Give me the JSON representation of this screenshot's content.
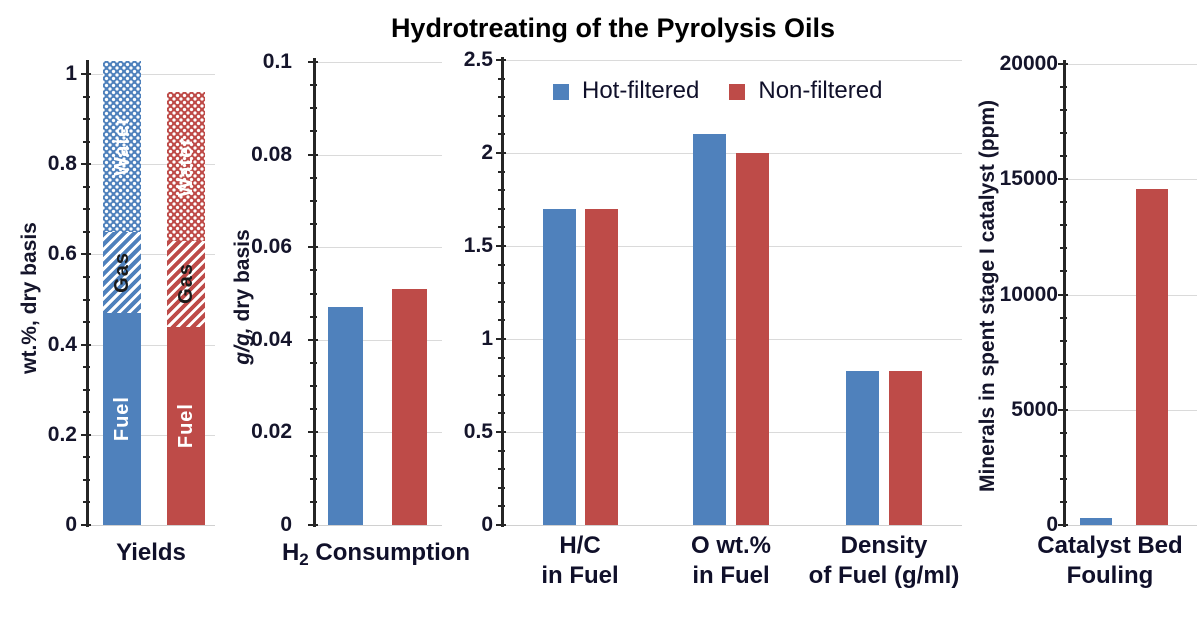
{
  "chart_data": {
    "type": "bar",
    "title": "Hydrotreating of the Pyrolysis Oils",
    "legend": {
      "position": "top-center of fuel-properties panel",
      "items": [
        {
          "label": "Hot-filtered",
          "color": "#4F81BC"
        },
        {
          "label": "Non-filtered",
          "color": "#BE4B48"
        }
      ]
    },
    "grid": "horizontal major gridlines on",
    "panels": [
      {
        "id": "yields",
        "type": "stacked",
        "xlabel_lines": [
          [
            {
              "text": "Yields"
            }
          ]
        ],
        "ylabel_parts": [
          {
            "text": "wt.%, dry basis"
          }
        ],
        "ylim": [
          0,
          1.03
        ],
        "yticks": [
          0,
          0.2,
          0.4,
          0.6,
          0.8,
          1
        ],
        "ytick_labels": [
          "0",
          "0.2",
          "0.4",
          "0.6",
          "0.8",
          "1"
        ],
        "minor_step": 0.05,
        "series": [
          {
            "name": "Hot-filtered",
            "color": "#4F81BC",
            "total": 1.03,
            "segments": [
              {
                "label": "Fuel",
                "value": 0.47,
                "pattern": "solid",
                "label_color": "#ffffff"
              },
              {
                "label": "Gas",
                "value": 0.18,
                "pattern": "diagonal",
                "label_color": "#1a1a1a"
              },
              {
                "label": "Water",
                "value": 0.38,
                "pattern": "dots",
                "label_color": "#ffffff"
              }
            ]
          },
          {
            "name": "Non-filtered",
            "color": "#BE4B48",
            "total": 0.96,
            "segments": [
              {
                "label": "Fuel",
                "value": 0.44,
                "pattern": "solid",
                "label_color": "#ffffff"
              },
              {
                "label": "Gas",
                "value": 0.19,
                "pattern": "diagonal",
                "label_color": "#1a1a1a"
              },
              {
                "label": "Water",
                "value": 0.33,
                "pattern": "dots",
                "label_color": "#ffffff"
              }
            ]
          }
        ]
      },
      {
        "id": "h2-consumption",
        "type": "bar",
        "xlabel_lines": [
          [
            {
              "text": "H"
            },
            {
              "text": "2",
              "sub": true
            },
            {
              "text": " Consumption"
            }
          ]
        ],
        "ylabel_parts": [
          {
            "text": "g/g,",
            "italic": true
          },
          {
            "text": " dry basis"
          }
        ],
        "ylim": [
          0,
          0.1
        ],
        "yticks": [
          0,
          0.02,
          0.04,
          0.06,
          0.08,
          0.1
        ],
        "ytick_labels": [
          "0",
          "0.02",
          "0.04",
          "0.06",
          "0.08",
          "0.1"
        ],
        "minor_step": 0.005,
        "series": [
          {
            "name": "Hot-filtered",
            "color": "#4F81BC",
            "value": 0.047
          },
          {
            "name": "Non-filtered",
            "color": "#BE4B48",
            "value": 0.051
          }
        ]
      },
      {
        "id": "fuel-properties",
        "type": "grouped",
        "categories": [
          {
            "lines": [
              [
                {
                  "text": "H/C"
                }
              ],
              [
                {
                  "text": "in Fuel"
                }
              ]
            ]
          },
          {
            "lines": [
              [
                {
                  "text": "O wt.%"
                }
              ],
              [
                {
                  "text": "in Fuel"
                }
              ]
            ]
          },
          {
            "lines": [
              [
                {
                  "text": "Density"
                }
              ],
              [
                {
                  "text": "of Fuel (g/ml)"
                }
              ]
            ]
          }
        ],
        "ylim": [
          0,
          2.5
        ],
        "yticks": [
          0,
          0.5,
          1,
          1.5,
          2,
          2.5
        ],
        "ytick_labels": [
          "0",
          "0.5",
          "1",
          "1.5",
          "2",
          "2.5"
        ],
        "minor_step": 0.1,
        "series": [
          {
            "name": "Hot-filtered",
            "color": "#4F81BC",
            "values": [
              1.7,
              2.1,
              0.83
            ]
          },
          {
            "name": "Non-filtered",
            "color": "#BE4B48",
            "values": [
              1.7,
              2.0,
              0.83
            ]
          }
        ]
      },
      {
        "id": "catalyst-bed-fouling",
        "type": "bar",
        "xlabel_lines": [
          [
            {
              "text": "Catalyst Bed"
            }
          ],
          [
            {
              "text": "Fouling"
            }
          ]
        ],
        "ylabel_parts": [
          {
            "text": "Minerals in spent stage I catalyst (ppm)"
          }
        ],
        "ylim": [
          0,
          20000
        ],
        "yticks": [
          0,
          5000,
          10000,
          15000,
          20000
        ],
        "ytick_labels": [
          "0",
          "5000",
          "10000",
          "15000",
          "20000"
        ],
        "minor_step": 1000,
        "series": [
          {
            "name": "Hot-filtered",
            "color": "#4F81BC",
            "value": 300
          },
          {
            "name": "Non-filtered",
            "color": "#BE4B48",
            "value": 14600
          }
        ]
      }
    ]
  }
}
